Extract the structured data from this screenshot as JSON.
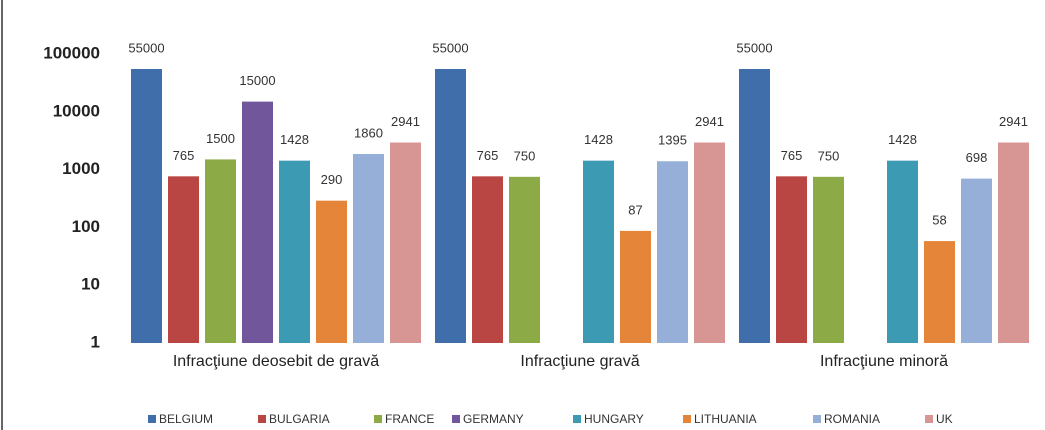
{
  "chart_data": {
    "type": "bar",
    "log_scale": true,
    "grid": false,
    "legend": "bottom",
    "categories": [
      "Infracţiune deosebit de gravă",
      "Infracţiune gravă",
      "Infracţiune minoră"
    ],
    "ylim": [
      1,
      100000
    ],
    "yticks": [
      1,
      10,
      100,
      1000,
      10000,
      100000
    ],
    "series": [
      {
        "name": "BELGIUM",
        "color": "#3f6eab",
        "values": [
          55000,
          55000,
          55000
        ]
      },
      {
        "name": "BULGARIA",
        "color": "#b94643",
        "values": [
          765,
          765,
          765
        ]
      },
      {
        "name": "FRANCE",
        "color": "#8cab47",
        "values": [
          1500,
          750,
          750
        ]
      },
      {
        "name": "GERMANY",
        "color": "#71569c",
        "values": [
          15000,
          null,
          null
        ]
      },
      {
        "name": "HUNGARY",
        "color": "#3c9ab3",
        "values": [
          1428,
          1428,
          1428
        ]
      },
      {
        "name": "LITHUANIA",
        "color": "#e5853a",
        "values": [
          290,
          87,
          58
        ]
      },
      {
        "name": "ROMANIA",
        "color": "#95afd8",
        "values": [
          1860,
          1395,
          698
        ]
      },
      {
        "name": "UK",
        "color": "#d79593",
        "values": [
          2941,
          2941,
          2941
        ]
      }
    ]
  }
}
